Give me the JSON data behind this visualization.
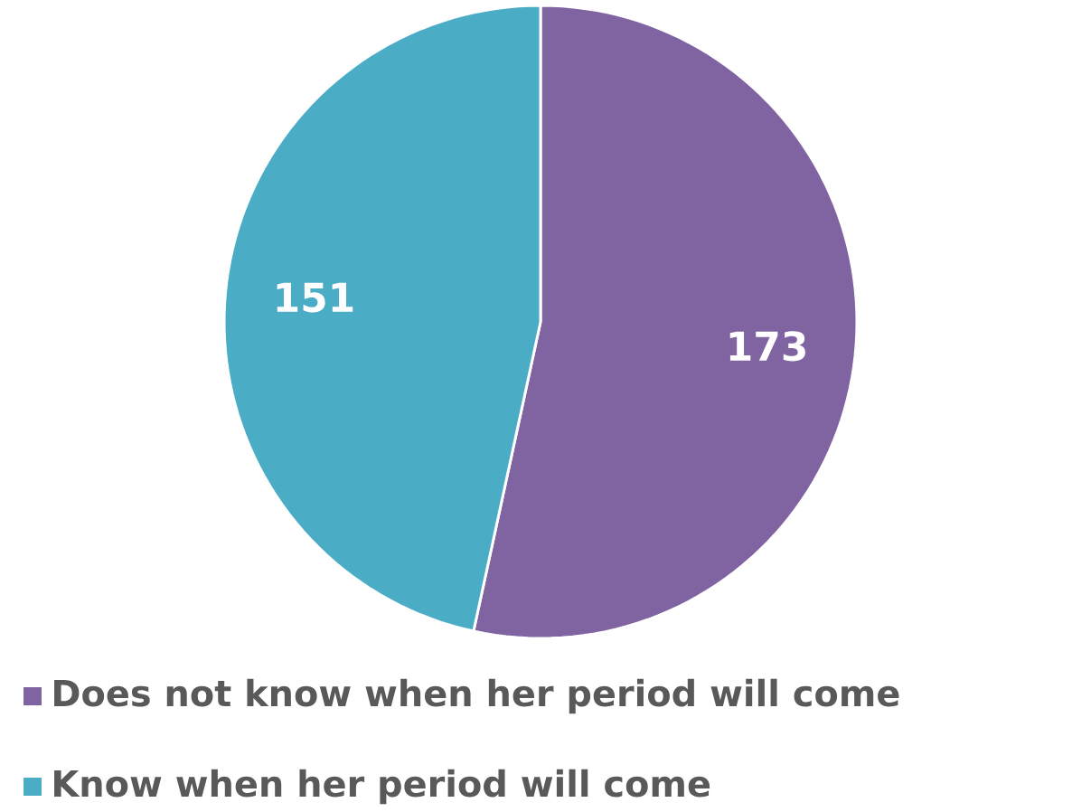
{
  "chart_data": {
    "type": "pie",
    "categories": [
      "Does not know when her period will come",
      "Know when her period will come"
    ],
    "values": [
      173,
      151
    ],
    "colors": [
      "#8064a2",
      "#4bacc6"
    ],
    "data_labels": true,
    "legend": "bottom"
  }
}
